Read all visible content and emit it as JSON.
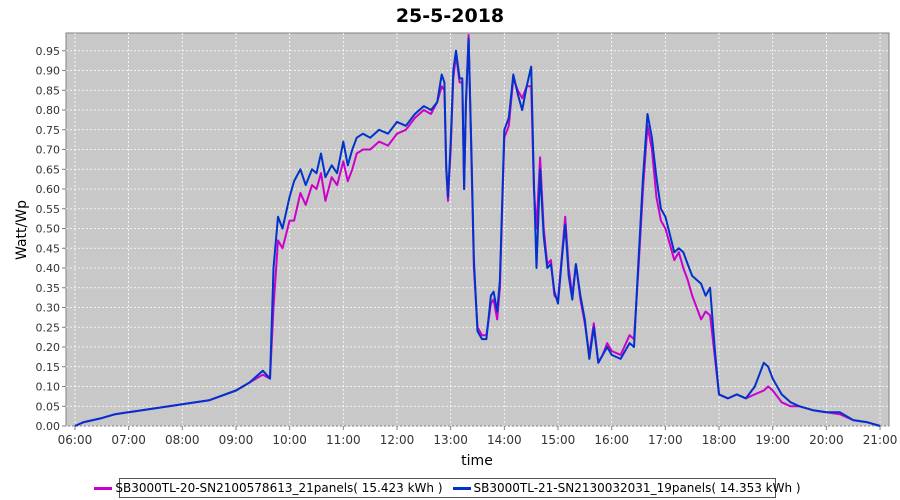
{
  "chart_data": {
    "type": "line",
    "title": "25-5-2018",
    "xlabel": "time",
    "ylabel": "Watt/Wp",
    "xlim": [
      "05:50",
      "21:10"
    ],
    "ylim": [
      0,
      0.995
    ],
    "x_tick_labels": [
      "06:00",
      "07:00",
      "08:00",
      "09:00",
      "10:00",
      "11:00",
      "12:00",
      "13:00",
      "14:00",
      "15:00",
      "16:00",
      "17:00",
      "18:00",
      "19:00",
      "20:00",
      "21:00"
    ],
    "y_tick_labels": [
      "0.00",
      "0.05",
      "0.10",
      "0.15",
      "0.20",
      "0.25",
      "0.30",
      "0.35",
      "0.40",
      "0.45",
      "0.50",
      "0.55",
      "0.60",
      "0.65",
      "0.70",
      "0.75",
      "0.80",
      "0.85",
      "0.90",
      "0.95"
    ],
    "grid": true,
    "legend_position": "bottom",
    "series": [
      {
        "name": "SB3000TL-20-SN2100578613_21panels( 15.423 kWh )",
        "color": "#cc00cc",
        "points": [
          [
            "06:00",
            0.0
          ],
          [
            "06:10",
            0.01
          ],
          [
            "06:30",
            0.02
          ],
          [
            "06:45",
            0.03
          ],
          [
            "07:00",
            0.035
          ],
          [
            "07:30",
            0.045
          ],
          [
            "08:00",
            0.055
          ],
          [
            "08:30",
            0.065
          ],
          [
            "09:00",
            0.09
          ],
          [
            "09:15",
            0.11
          ],
          [
            "09:30",
            0.13
          ],
          [
            "09:38",
            0.12
          ],
          [
            "09:42",
            0.3
          ],
          [
            "09:47",
            0.47
          ],
          [
            "09:52",
            0.45
          ],
          [
            "10:00",
            0.52
          ],
          [
            "10:05",
            0.52
          ],
          [
            "10:12",
            0.59
          ],
          [
            "10:18",
            0.56
          ],
          [
            "10:25",
            0.61
          ],
          [
            "10:30",
            0.6
          ],
          [
            "10:35",
            0.64
          ],
          [
            "10:40",
            0.57
          ],
          [
            "10:47",
            0.63
          ],
          [
            "10:53",
            0.61
          ],
          [
            "11:00",
            0.67
          ],
          [
            "11:05",
            0.62
          ],
          [
            "11:10",
            0.65
          ],
          [
            "11:15",
            0.69
          ],
          [
            "11:22",
            0.7
          ],
          [
            "11:30",
            0.7
          ],
          [
            "11:40",
            0.72
          ],
          [
            "11:50",
            0.71
          ],
          [
            "12:00",
            0.74
          ],
          [
            "12:10",
            0.75
          ],
          [
            "12:20",
            0.78
          ],
          [
            "12:30",
            0.8
          ],
          [
            "12:38",
            0.79
          ],
          [
            "12:45",
            0.82
          ],
          [
            "12:50",
            0.86
          ],
          [
            "12:53",
            0.85
          ],
          [
            "12:55",
            0.65
          ],
          [
            "12:57",
            0.57
          ],
          [
            "13:00",
            0.7
          ],
          [
            "13:03",
            0.88
          ],
          [
            "13:06",
            0.94
          ],
          [
            "13:10",
            0.87
          ],
          [
            "13:13",
            0.87
          ],
          [
            "13:15",
            0.6
          ],
          [
            "13:17",
            0.81
          ],
          [
            "13:20",
            0.99
          ],
          [
            "13:23",
            0.7
          ],
          [
            "13:26",
            0.4
          ],
          [
            "13:30",
            0.25
          ],
          [
            "13:35",
            0.23
          ],
          [
            "13:40",
            0.23
          ],
          [
            "13:45",
            0.31
          ],
          [
            "13:48",
            0.32
          ],
          [
            "13:52",
            0.27
          ],
          [
            "13:55",
            0.35
          ],
          [
            "14:00",
            0.73
          ],
          [
            "14:05",
            0.76
          ],
          [
            "14:10",
            0.88
          ],
          [
            "14:15",
            0.85
          ],
          [
            "14:20",
            0.83
          ],
          [
            "14:25",
            0.86
          ],
          [
            "14:30",
            0.86
          ],
          [
            "14:33",
            0.6
          ],
          [
            "14:36",
            0.5
          ],
          [
            "14:40",
            0.68
          ],
          [
            "14:44",
            0.5
          ],
          [
            "14:48",
            0.41
          ],
          [
            "14:52",
            0.42
          ],
          [
            "14:56",
            0.33
          ],
          [
            "15:00",
            0.32
          ],
          [
            "15:05",
            0.45
          ],
          [
            "15:08",
            0.53
          ],
          [
            "15:12",
            0.4
          ],
          [
            "15:16",
            0.33
          ],
          [
            "15:20",
            0.41
          ],
          [
            "15:25",
            0.32
          ],
          [
            "15:30",
            0.26
          ],
          [
            "15:35",
            0.18
          ],
          [
            "15:40",
            0.26
          ],
          [
            "15:45",
            0.16
          ],
          [
            "15:50",
            0.18
          ],
          [
            "15:55",
            0.21
          ],
          [
            "16:00",
            0.19
          ],
          [
            "16:10",
            0.18
          ],
          [
            "16:20",
            0.23
          ],
          [
            "16:25",
            0.22
          ],
          [
            "16:30",
            0.4
          ],
          [
            "16:35",
            0.6
          ],
          [
            "16:40",
            0.76
          ],
          [
            "16:45",
            0.7
          ],
          [
            "16:50",
            0.58
          ],
          [
            "16:55",
            0.52
          ],
          [
            "17:00",
            0.5
          ],
          [
            "17:10",
            0.42
          ],
          [
            "17:15",
            0.44
          ],
          [
            "17:20",
            0.4
          ],
          [
            "17:25",
            0.37
          ],
          [
            "17:30",
            0.33
          ],
          [
            "17:40",
            0.27
          ],
          [
            "17:45",
            0.29
          ],
          [
            "17:50",
            0.28
          ],
          [
            "17:55",
            0.18
          ],
          [
            "18:00",
            0.08
          ],
          [
            "18:10",
            0.07
          ],
          [
            "18:20",
            0.08
          ],
          [
            "18:30",
            0.07
          ],
          [
            "18:40",
            0.08
          ],
          [
            "18:50",
            0.09
          ],
          [
            "18:55",
            0.1
          ],
          [
            "19:00",
            0.09
          ],
          [
            "19:10",
            0.06
          ],
          [
            "19:20",
            0.05
          ],
          [
            "19:30",
            0.05
          ],
          [
            "19:45",
            0.04
          ],
          [
            "20:00",
            0.035
          ],
          [
            "20:15",
            0.03
          ],
          [
            "20:30",
            0.015
          ],
          [
            "20:45",
            0.01
          ],
          [
            "21:00",
            0.0
          ]
        ]
      },
      {
        "name": "SB3000TL-21-SN2130032031_19panels( 14.353 kWh )",
        "color": "#0033cc",
        "points": [
          [
            "06:00",
            0.0
          ],
          [
            "06:10",
            0.01
          ],
          [
            "06:30",
            0.02
          ],
          [
            "06:45",
            0.03
          ],
          [
            "07:00",
            0.035
          ],
          [
            "07:30",
            0.045
          ],
          [
            "08:00",
            0.055
          ],
          [
            "08:30",
            0.065
          ],
          [
            "09:00",
            0.09
          ],
          [
            "09:15",
            0.11
          ],
          [
            "09:30",
            0.14
          ],
          [
            "09:38",
            0.12
          ],
          [
            "09:42",
            0.4
          ],
          [
            "09:47",
            0.53
          ],
          [
            "09:52",
            0.5
          ],
          [
            "10:00",
            0.58
          ],
          [
            "10:05",
            0.62
          ],
          [
            "10:12",
            0.65
          ],
          [
            "10:18",
            0.61
          ],
          [
            "10:25",
            0.65
          ],
          [
            "10:30",
            0.64
          ],
          [
            "10:35",
            0.69
          ],
          [
            "10:40",
            0.63
          ],
          [
            "10:47",
            0.66
          ],
          [
            "10:53",
            0.64
          ],
          [
            "11:00",
            0.72
          ],
          [
            "11:05",
            0.66
          ],
          [
            "11:10",
            0.7
          ],
          [
            "11:15",
            0.73
          ],
          [
            "11:22",
            0.74
          ],
          [
            "11:30",
            0.73
          ],
          [
            "11:40",
            0.75
          ],
          [
            "11:50",
            0.74
          ],
          [
            "12:00",
            0.77
          ],
          [
            "12:10",
            0.76
          ],
          [
            "12:20",
            0.79
          ],
          [
            "12:30",
            0.81
          ],
          [
            "12:38",
            0.8
          ],
          [
            "12:45",
            0.82
          ],
          [
            "12:50",
            0.89
          ],
          [
            "12:53",
            0.87
          ],
          [
            "12:55",
            0.66
          ],
          [
            "12:57",
            0.58
          ],
          [
            "13:00",
            0.72
          ],
          [
            "13:03",
            0.9
          ],
          [
            "13:06",
            0.95
          ],
          [
            "13:10",
            0.88
          ],
          [
            "13:13",
            0.88
          ],
          [
            "13:15",
            0.6
          ],
          [
            "13:17",
            0.82
          ],
          [
            "13:20",
            0.98
          ],
          [
            "13:23",
            0.72
          ],
          [
            "13:26",
            0.42
          ],
          [
            "13:30",
            0.24
          ],
          [
            "13:35",
            0.22
          ],
          [
            "13:40",
            0.22
          ],
          [
            "13:45",
            0.33
          ],
          [
            "13:48",
            0.34
          ],
          [
            "13:52",
            0.29
          ],
          [
            "13:55",
            0.37
          ],
          [
            "14:00",
            0.75
          ],
          [
            "14:05",
            0.78
          ],
          [
            "14:10",
            0.89
          ],
          [
            "14:15",
            0.84
          ],
          [
            "14:20",
            0.8
          ],
          [
            "14:25",
            0.86
          ],
          [
            "14:30",
            0.91
          ],
          [
            "14:33",
            0.62
          ],
          [
            "14:36",
            0.4
          ],
          [
            "14:40",
            0.65
          ],
          [
            "14:44",
            0.48
          ],
          [
            "14:48",
            0.4
          ],
          [
            "14:52",
            0.41
          ],
          [
            "14:56",
            0.34
          ],
          [
            "15:00",
            0.31
          ],
          [
            "15:05",
            0.44
          ],
          [
            "15:08",
            0.51
          ],
          [
            "15:12",
            0.38
          ],
          [
            "15:16",
            0.32
          ],
          [
            "15:20",
            0.41
          ],
          [
            "15:25",
            0.33
          ],
          [
            "15:30",
            0.27
          ],
          [
            "15:35",
            0.17
          ],
          [
            "15:40",
            0.25
          ],
          [
            "15:45",
            0.16
          ],
          [
            "15:50",
            0.18
          ],
          [
            "15:55",
            0.2
          ],
          [
            "16:00",
            0.18
          ],
          [
            "16:10",
            0.17
          ],
          [
            "16:20",
            0.21
          ],
          [
            "16:25",
            0.2
          ],
          [
            "16:30",
            0.42
          ],
          [
            "16:35",
            0.63
          ],
          [
            "16:40",
            0.79
          ],
          [
            "16:45",
            0.73
          ],
          [
            "16:50",
            0.63
          ],
          [
            "16:55",
            0.55
          ],
          [
            "17:00",
            0.53
          ],
          [
            "17:10",
            0.44
          ],
          [
            "17:15",
            0.45
          ],
          [
            "17:20",
            0.44
          ],
          [
            "17:25",
            0.41
          ],
          [
            "17:30",
            0.38
          ],
          [
            "17:40",
            0.36
          ],
          [
            "17:45",
            0.33
          ],
          [
            "17:50",
            0.35
          ],
          [
            "17:55",
            0.2
          ],
          [
            "18:00",
            0.08
          ],
          [
            "18:10",
            0.07
          ],
          [
            "18:20",
            0.08
          ],
          [
            "18:30",
            0.07
          ],
          [
            "18:40",
            0.1
          ],
          [
            "18:50",
            0.16
          ],
          [
            "18:55",
            0.15
          ],
          [
            "19:00",
            0.12
          ],
          [
            "19:10",
            0.08
          ],
          [
            "19:20",
            0.06
          ],
          [
            "19:30",
            0.05
          ],
          [
            "19:45",
            0.04
          ],
          [
            "20:00",
            0.035
          ],
          [
            "20:15",
            0.035
          ],
          [
            "20:30",
            0.015
          ],
          [
            "20:45",
            0.01
          ],
          [
            "21:00",
            0.0
          ]
        ]
      }
    ]
  }
}
